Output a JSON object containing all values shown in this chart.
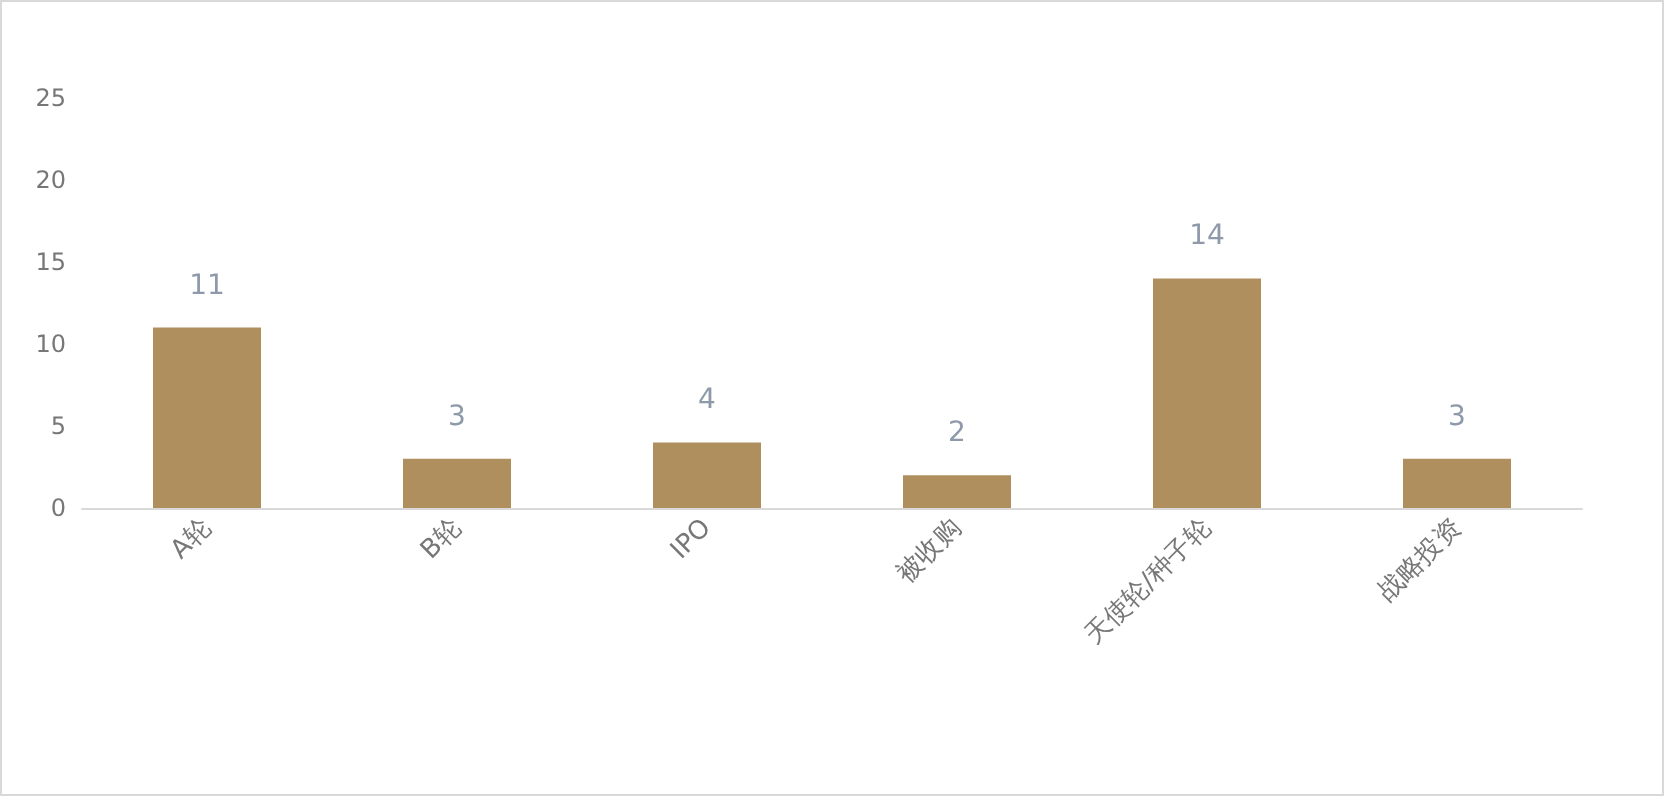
{
  "chart_data": {
    "type": "bar",
    "categories": [
      "A轮",
      "B轮",
      "IPO",
      "被收购",
      "天使轮/种子轮",
      "战略投资"
    ],
    "values": [
      11,
      3,
      4,
      2,
      14,
      3
    ],
    "color": "#b08f5f",
    "ylim": [
      0,
      25
    ],
    "yticks": [
      0,
      5,
      10,
      15,
      20,
      25
    ],
    "grid": false,
    "data_labels": true
  }
}
